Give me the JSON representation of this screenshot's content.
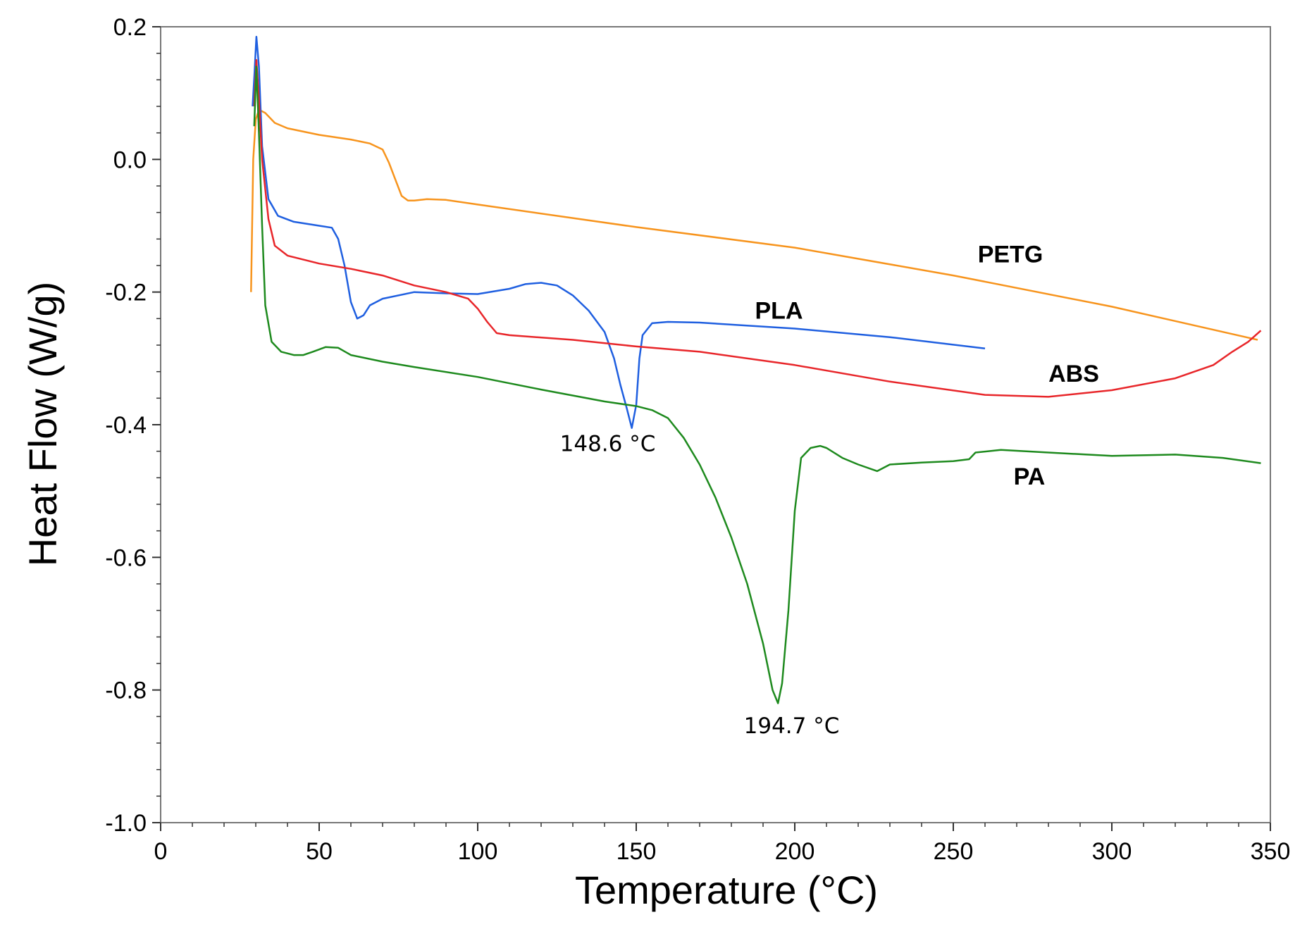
{
  "chart_data": {
    "type": "line",
    "xlabel": "Temperature (°C)",
    "ylabel": "Heat Flow (W/g)",
    "xlim": [
      0,
      350
    ],
    "ylim": [
      -1.0,
      0.2
    ],
    "x_ticks": [
      "0",
      "50",
      "100",
      "150",
      "200",
      "250",
      "300",
      "350"
    ],
    "y_ticks": [
      "0.2",
      "0.0",
      "-0.2",
      "-0.4",
      "-0.6",
      "-0.8",
      "-1.0"
    ],
    "grid": false,
    "legend": "none",
    "series": [
      {
        "name": "PETG",
        "color": "#F7941D",
        "points": [
          [
            28.5,
            -0.2
          ],
          [
            29.2,
            0.0
          ],
          [
            30,
            0.06
          ],
          [
            31,
            0.075
          ],
          [
            33,
            0.07
          ],
          [
            36,
            0.055
          ],
          [
            40,
            0.047
          ],
          [
            50,
            0.037
          ],
          [
            60,
            0.03
          ],
          [
            66,
            0.024
          ],
          [
            70,
            0.015
          ],
          [
            72,
            -0.005
          ],
          [
            74,
            -0.03
          ],
          [
            76,
            -0.055
          ],
          [
            78,
            -0.062
          ],
          [
            80,
            -0.062
          ],
          [
            84,
            -0.06
          ],
          [
            90,
            -0.061
          ],
          [
            100,
            -0.068
          ],
          [
            150,
            -0.102
          ],
          [
            200,
            -0.133
          ],
          [
            250,
            -0.175
          ],
          [
            300,
            -0.222
          ],
          [
            346,
            -0.272
          ]
        ]
      },
      {
        "name": "PLA",
        "color": "#1F5FE0",
        "points": [
          [
            29,
            0.08
          ],
          [
            29.6,
            0.13
          ],
          [
            30.2,
            0.185
          ],
          [
            31,
            0.14
          ],
          [
            32,
            0.02
          ],
          [
            34,
            -0.06
          ],
          [
            37,
            -0.085
          ],
          [
            42,
            -0.094
          ],
          [
            50,
            -0.1
          ],
          [
            54,
            -0.103
          ],
          [
            56,
            -0.12
          ],
          [
            58,
            -0.16
          ],
          [
            60,
            -0.215
          ],
          [
            62,
            -0.24
          ],
          [
            64,
            -0.235
          ],
          [
            66,
            -0.22
          ],
          [
            70,
            -0.21
          ],
          [
            80,
            -0.2
          ],
          [
            90,
            -0.202
          ],
          [
            100,
            -0.203
          ],
          [
            110,
            -0.195
          ],
          [
            115,
            -0.188
          ],
          [
            120,
            -0.186
          ],
          [
            125,
            -0.19
          ],
          [
            130,
            -0.205
          ],
          [
            135,
            -0.228
          ],
          [
            140,
            -0.26
          ],
          [
            143,
            -0.3
          ],
          [
            145,
            -0.34
          ],
          [
            147,
            -0.375
          ],
          [
            148.6,
            -0.405
          ],
          [
            150,
            -0.37
          ],
          [
            151,
            -0.3
          ],
          [
            152,
            -0.265
          ],
          [
            155,
            -0.247
          ],
          [
            160,
            -0.245
          ],
          [
            170,
            -0.246
          ],
          [
            200,
            -0.255
          ],
          [
            230,
            -0.268
          ],
          [
            260,
            -0.285
          ]
        ]
      },
      {
        "name": "ABS",
        "color": "#E8262A",
        "points": [
          [
            29.5,
            0.08
          ],
          [
            30.2,
            0.15
          ],
          [
            31,
            0.09
          ],
          [
            32,
            0.0
          ],
          [
            34,
            -0.09
          ],
          [
            36,
            -0.13
          ],
          [
            40,
            -0.145
          ],
          [
            50,
            -0.157
          ],
          [
            60,
            -0.165
          ],
          [
            70,
            -0.175
          ],
          [
            80,
            -0.19
          ],
          [
            90,
            -0.2
          ],
          [
            97,
            -0.21
          ],
          [
            100,
            -0.225
          ],
          [
            103,
            -0.245
          ],
          [
            106,
            -0.262
          ],
          [
            110,
            -0.265
          ],
          [
            130,
            -0.272
          ],
          [
            150,
            -0.282
          ],
          [
            170,
            -0.29
          ],
          [
            200,
            -0.31
          ],
          [
            230,
            -0.335
          ],
          [
            260,
            -0.355
          ],
          [
            280,
            -0.358
          ],
          [
            300,
            -0.348
          ],
          [
            320,
            -0.33
          ],
          [
            332,
            -0.31
          ],
          [
            338,
            -0.29
          ],
          [
            343,
            -0.275
          ],
          [
            347,
            -0.258
          ]
        ]
      },
      {
        "name": "PA",
        "color": "#1E8A1E",
        "points": [
          [
            29.5,
            0.05
          ],
          [
            30.2,
            0.14
          ],
          [
            31,
            0.04
          ],
          [
            32,
            -0.1
          ],
          [
            33,
            -0.22
          ],
          [
            35,
            -0.275
          ],
          [
            38,
            -0.29
          ],
          [
            42,
            -0.295
          ],
          [
            45,
            -0.295
          ],
          [
            48,
            -0.29
          ],
          [
            52,
            -0.283
          ],
          [
            56,
            -0.284
          ],
          [
            60,
            -0.295
          ],
          [
            70,
            -0.305
          ],
          [
            80,
            -0.313
          ],
          [
            100,
            -0.328
          ],
          [
            120,
            -0.347
          ],
          [
            140,
            -0.365
          ],
          [
            150,
            -0.372
          ],
          [
            155,
            -0.378
          ],
          [
            160,
            -0.39
          ],
          [
            165,
            -0.42
          ],
          [
            170,
            -0.46
          ],
          [
            175,
            -0.51
          ],
          [
            180,
            -0.57
          ],
          [
            185,
            -0.64
          ],
          [
            190,
            -0.73
          ],
          [
            193,
            -0.8
          ],
          [
            194.7,
            -0.82
          ],
          [
            196,
            -0.79
          ],
          [
            198,
            -0.68
          ],
          [
            200,
            -0.53
          ],
          [
            202,
            -0.45
          ],
          [
            205,
            -0.435
          ],
          [
            208,
            -0.432
          ],
          [
            210,
            -0.435
          ],
          [
            215,
            -0.45
          ],
          [
            220,
            -0.46
          ],
          [
            226,
            -0.47
          ],
          [
            230,
            -0.46
          ],
          [
            240,
            -0.457
          ],
          [
            250,
            -0.455
          ],
          [
            255,
            -0.452
          ],
          [
            257,
            -0.442
          ],
          [
            265,
            -0.438
          ],
          [
            280,
            -0.442
          ],
          [
            300,
            -0.447
          ],
          [
            320,
            -0.445
          ],
          [
            335,
            -0.45
          ],
          [
            347,
            -0.458
          ]
        ]
      }
    ],
    "series_labels": [
      {
        "text": "PETG",
        "x": 268,
        "y": -0.155
      },
      {
        "text": "PLA",
        "x": 195,
        "y": -0.24
      },
      {
        "text": "ABS",
        "x": 288,
        "y": -0.335
      },
      {
        "text": "PA",
        "x": 274,
        "y": -0.49
      }
    ],
    "annotations": [
      {
        "text": "148.6 °C",
        "x": 141,
        "y": -0.44
      },
      {
        "text": "194.7 °C",
        "x": 199,
        "y": -0.865
      }
    ]
  }
}
